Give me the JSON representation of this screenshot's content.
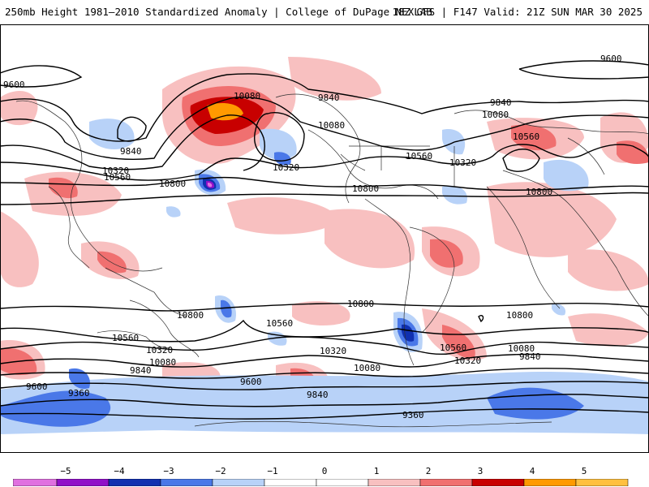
{
  "header": {
    "left": "250mb Height 1981–2010 Standardized Anomaly | College of DuPage NEXLAB",
    "right": "18Z GFS | F147 Valid: 21Z SUN MAR 30 2025"
  },
  "contour_labels": [
    "9600",
    "9600",
    "10080",
    "9840",
    "9840",
    "10080",
    "10080",
    "10560",
    "9840",
    "10320",
    "10560",
    "10320",
    "10320",
    "10560",
    "10800",
    "10800",
    "10800",
    "10800",
    "10800",
    "10560",
    "10560",
    "10320",
    "10320",
    "10080",
    "10080",
    "9840",
    "9840",
    "9600",
    "9600",
    "9360",
    "9360",
    "10560",
    "10320",
    "10080",
    "9840",
    "10800"
  ],
  "colorbar": {
    "ticks": [
      "−5",
      "−4",
      "−3",
      "−2",
      "−1",
      "0",
      "1",
      "2",
      "3",
      "4",
      "5"
    ],
    "colors": [
      "#e070e0",
      "#9010c8",
      "#1030b0",
      "#4a78e8",
      "#b8d2f8",
      "#ffffff",
      "#ffffff",
      "#f8c0c0",
      "#f07070",
      "#c80000",
      "#ff9a00",
      "#ffc040"
    ]
  }
}
